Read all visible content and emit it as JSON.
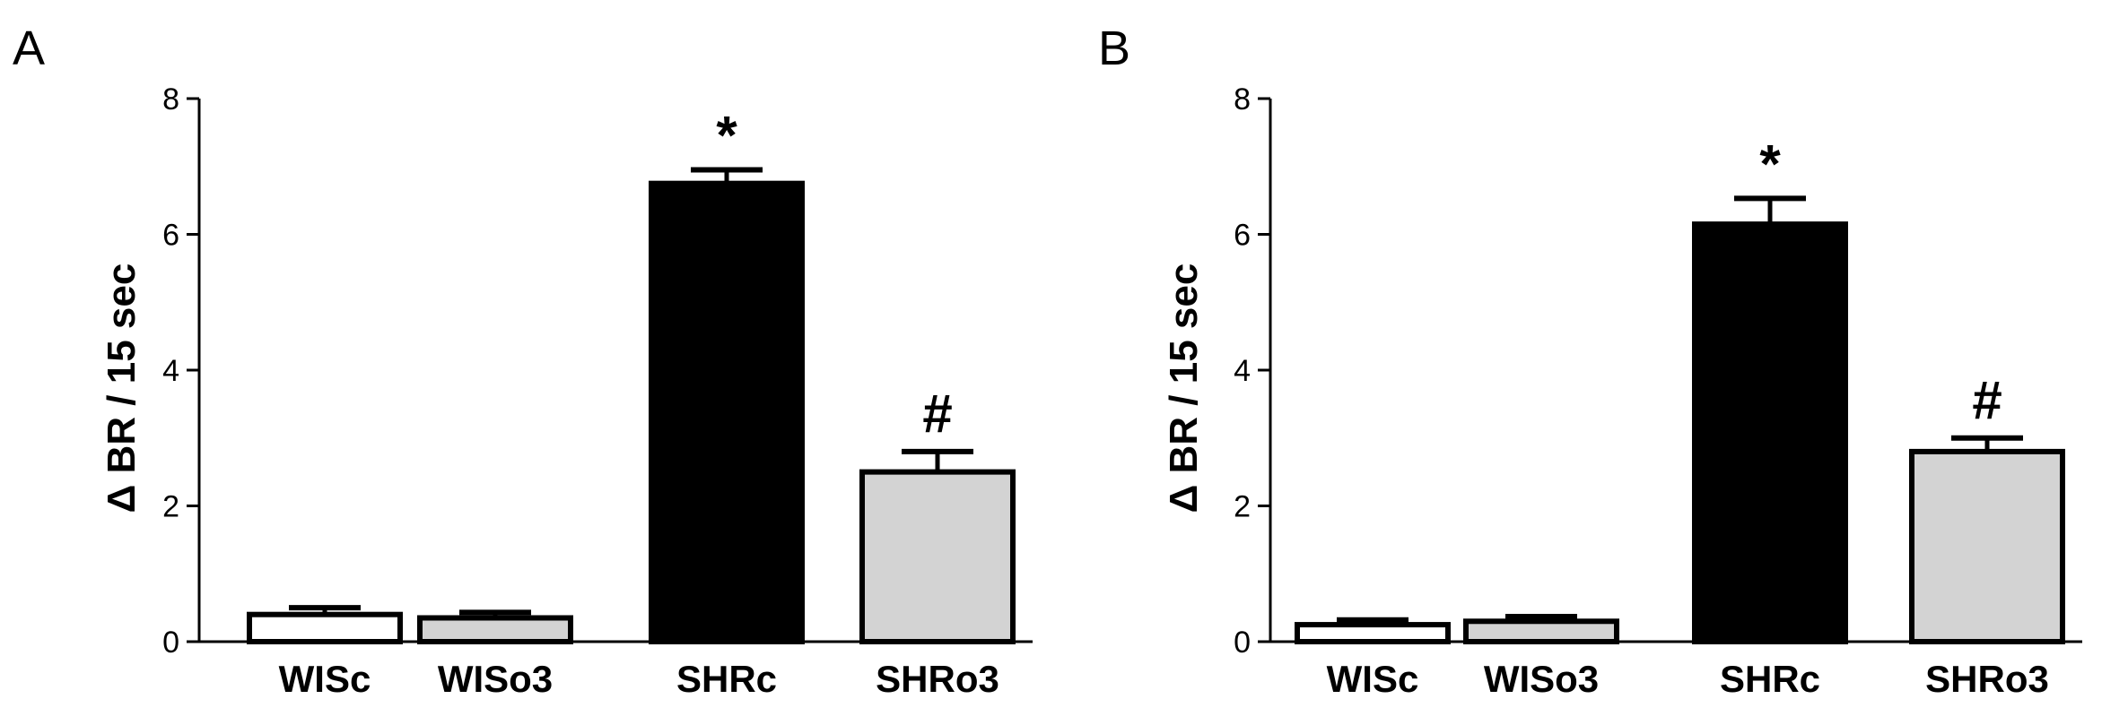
{
  "chart_data": [
    {
      "type": "bar",
      "panel_label": "A",
      "title": "",
      "xlabel": "",
      "ylabel": "Δ BR / 15 sec",
      "ylim": [
        0,
        8
      ],
      "yticks": [
        0,
        2,
        4,
        6,
        8
      ],
      "categories": [
        "WISc",
        "WISo3",
        "SHRc",
        "SHRo3"
      ],
      "values": [
        0.4,
        0.35,
        6.75,
        2.5
      ],
      "errors": [
        0.1,
        0.08,
        0.2,
        0.3
      ],
      "fills": [
        "#ffffff",
        "#d3d3d3",
        "#000000",
        "#d3d3d3"
      ],
      "annotations": [
        "",
        "",
        "*",
        "#"
      ],
      "grid": false,
      "error_bars": "upper"
    },
    {
      "type": "bar",
      "panel_label": "B",
      "title": "",
      "xlabel": "",
      "ylabel": "Δ BR / 15 sec",
      "ylim": [
        0,
        8
      ],
      "yticks": [
        0,
        2,
        4,
        6,
        8
      ],
      "categories": [
        "WISc",
        "WISo3",
        "SHRc",
        "SHRo3"
      ],
      "values": [
        0.25,
        0.3,
        6.15,
        2.8
      ],
      "errors": [
        0.07,
        0.07,
        0.38,
        0.2
      ],
      "fills": [
        "#ffffff",
        "#d3d3d3",
        "#000000",
        "#d3d3d3"
      ],
      "annotations": [
        "",
        "",
        "*",
        "#"
      ],
      "grid": false,
      "error_bars": "upper"
    }
  ]
}
